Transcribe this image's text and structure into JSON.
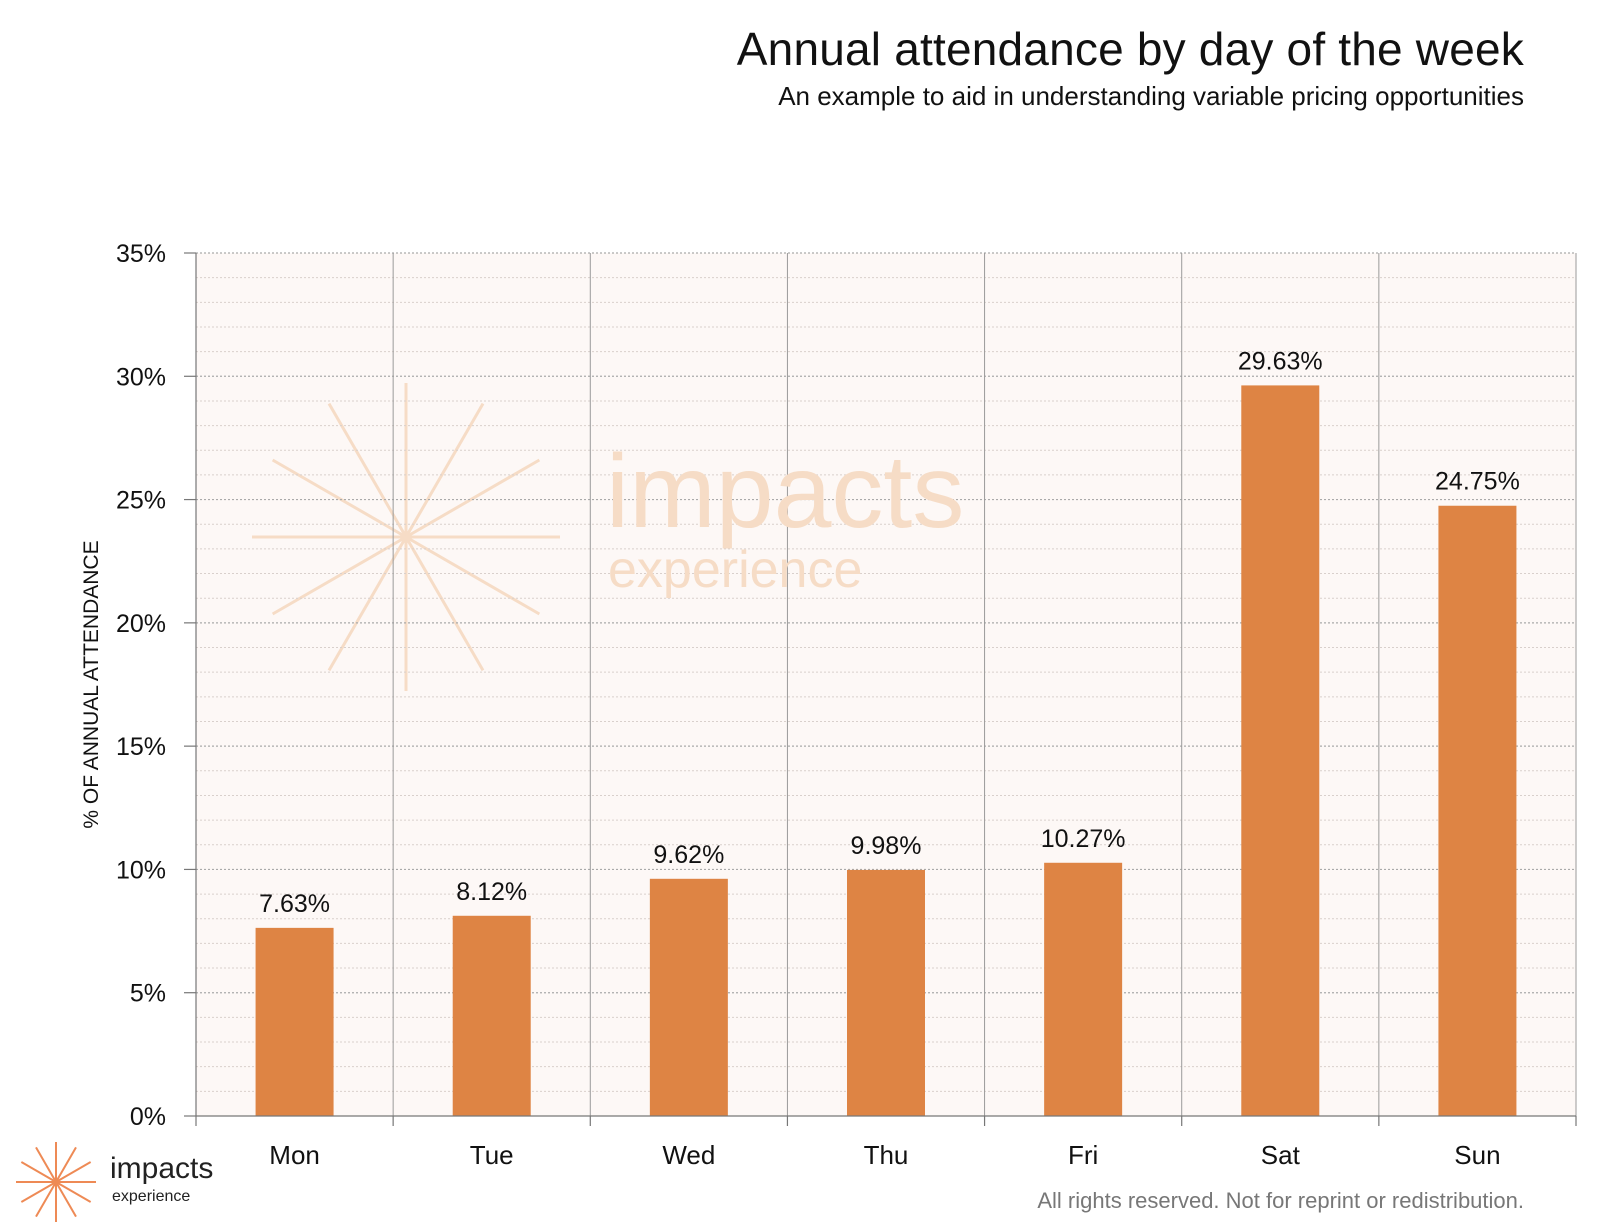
{
  "header": {
    "title": "Annual attendance by day of the week",
    "subtitle": "An example to aid in understanding variable pricing opportunities"
  },
  "watermark": {
    "word1": "impacts",
    "word2": "experience"
  },
  "brand": {
    "name": "impacts",
    "sub": "experience"
  },
  "footer": {
    "rights": "All rights reserved. Not for reprint or redistribution."
  },
  "colors": {
    "bar": "#DE8444",
    "plot_bg": "#FDF8F6",
    "grid": "#b8b8b8",
    "watermark": "#f6dcc6",
    "logo": "#ee8a55"
  },
  "icons": {
    "watermark": "starburst-icon",
    "brand": "starburst-icon"
  },
  "chart_data": {
    "type": "bar",
    "title": "Annual attendance by day of the week",
    "subtitle": "An example to aid in understanding variable pricing opportunities",
    "ylabel": "% OF ANNUAL ATTENDANCE",
    "xlabel": "",
    "categories": [
      "Mon",
      "Tue",
      "Wed",
      "Thu",
      "Fri",
      "Sat",
      "Sun"
    ],
    "values": [
      7.63,
      8.12,
      9.62,
      9.98,
      10.27,
      29.63,
      24.75
    ],
    "value_labels": [
      "7.63%",
      "8.12%",
      "9.62%",
      "9.98%",
      "10.27%",
      "29.63%",
      "24.75%"
    ],
    "ylim": [
      0,
      35
    ],
    "yticks": [
      0,
      5,
      10,
      15,
      20,
      25,
      30,
      35
    ],
    "ytick_labels": [
      "0%",
      "5%",
      "10%",
      "15%",
      "20%",
      "25%",
      "30%",
      "35%"
    ],
    "minor_step": 1,
    "grid": true,
    "legend": "none"
  }
}
